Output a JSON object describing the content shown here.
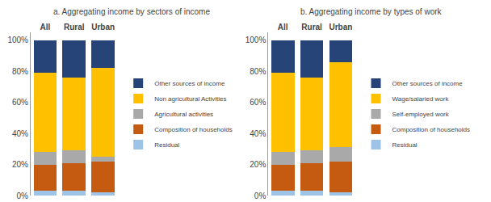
{
  "chart_data": [
    {
      "type": "bar",
      "stacked": true,
      "grid": false,
      "legend": "right",
      "title": "a. Aggregating income by sectors of income",
      "categories": [
        "All",
        "Rural",
        "Urban"
      ],
      "series": [
        {
          "name": "Residual",
          "color": "#9DC3E6",
          "values": [
            0.03,
            0.03,
            0.02
          ]
        },
        {
          "name": "Composition of households",
          "color": "#C55A11",
          "values": [
            0.17,
            0.18,
            0.2
          ]
        },
        {
          "name": "Agricultural activities",
          "color": "#A9A9A9",
          "values": [
            0.08,
            0.08,
            0.03
          ]
        },
        {
          "name": "Non agricultural Activities",
          "color": "#FFC000",
          "values": [
            0.51,
            0.47,
            0.57
          ]
        },
        {
          "name": "Other sources of income",
          "color": "#264478",
          "values": [
            0.21,
            0.24,
            0.18
          ]
        }
      ],
      "ylim": [
        0,
        1.05
      ],
      "yticks": [
        {
          "value": 0,
          "label": "0%"
        },
        {
          "value": 0.2,
          "label": "20%"
        },
        {
          "value": 0.4,
          "label": "40%"
        },
        {
          "value": 0.6,
          "label": "60%"
        },
        {
          "value": 0.8,
          "label": "80%"
        },
        {
          "value": 1.0,
          "label": "100%"
        }
      ]
    },
    {
      "type": "bar",
      "stacked": true,
      "grid": false,
      "legend": "right",
      "title": "b. Aggregating income by types of work",
      "categories": [
        "All",
        "Rural",
        "Urban"
      ],
      "series": [
        {
          "name": "Residual",
          "color": "#9DC3E6",
          "values": [
            0.03,
            0.03,
            0.02
          ]
        },
        {
          "name": "Composition of households",
          "color": "#C55A11",
          "values": [
            0.17,
            0.18,
            0.2
          ]
        },
        {
          "name": "Self-employed work",
          "color": "#A9A9A9",
          "values": [
            0.08,
            0.08,
            0.09
          ]
        },
        {
          "name": "Wage/salaried work",
          "color": "#FFC000",
          "values": [
            0.51,
            0.47,
            0.55
          ]
        },
        {
          "name": "Other sources of income",
          "color": "#264478",
          "values": [
            0.21,
            0.24,
            0.14
          ]
        }
      ],
      "ylim": [
        0,
        1.05
      ],
      "yticks": [
        {
          "value": 0,
          "label": "0%"
        },
        {
          "value": 0.2,
          "label": "20%"
        },
        {
          "value": 0.4,
          "label": "40%"
        },
        {
          "value": 0.6,
          "label": "60%"
        },
        {
          "value": 0.8,
          "label": "80%"
        },
        {
          "value": 1.0,
          "label": "100%"
        }
      ]
    }
  ]
}
